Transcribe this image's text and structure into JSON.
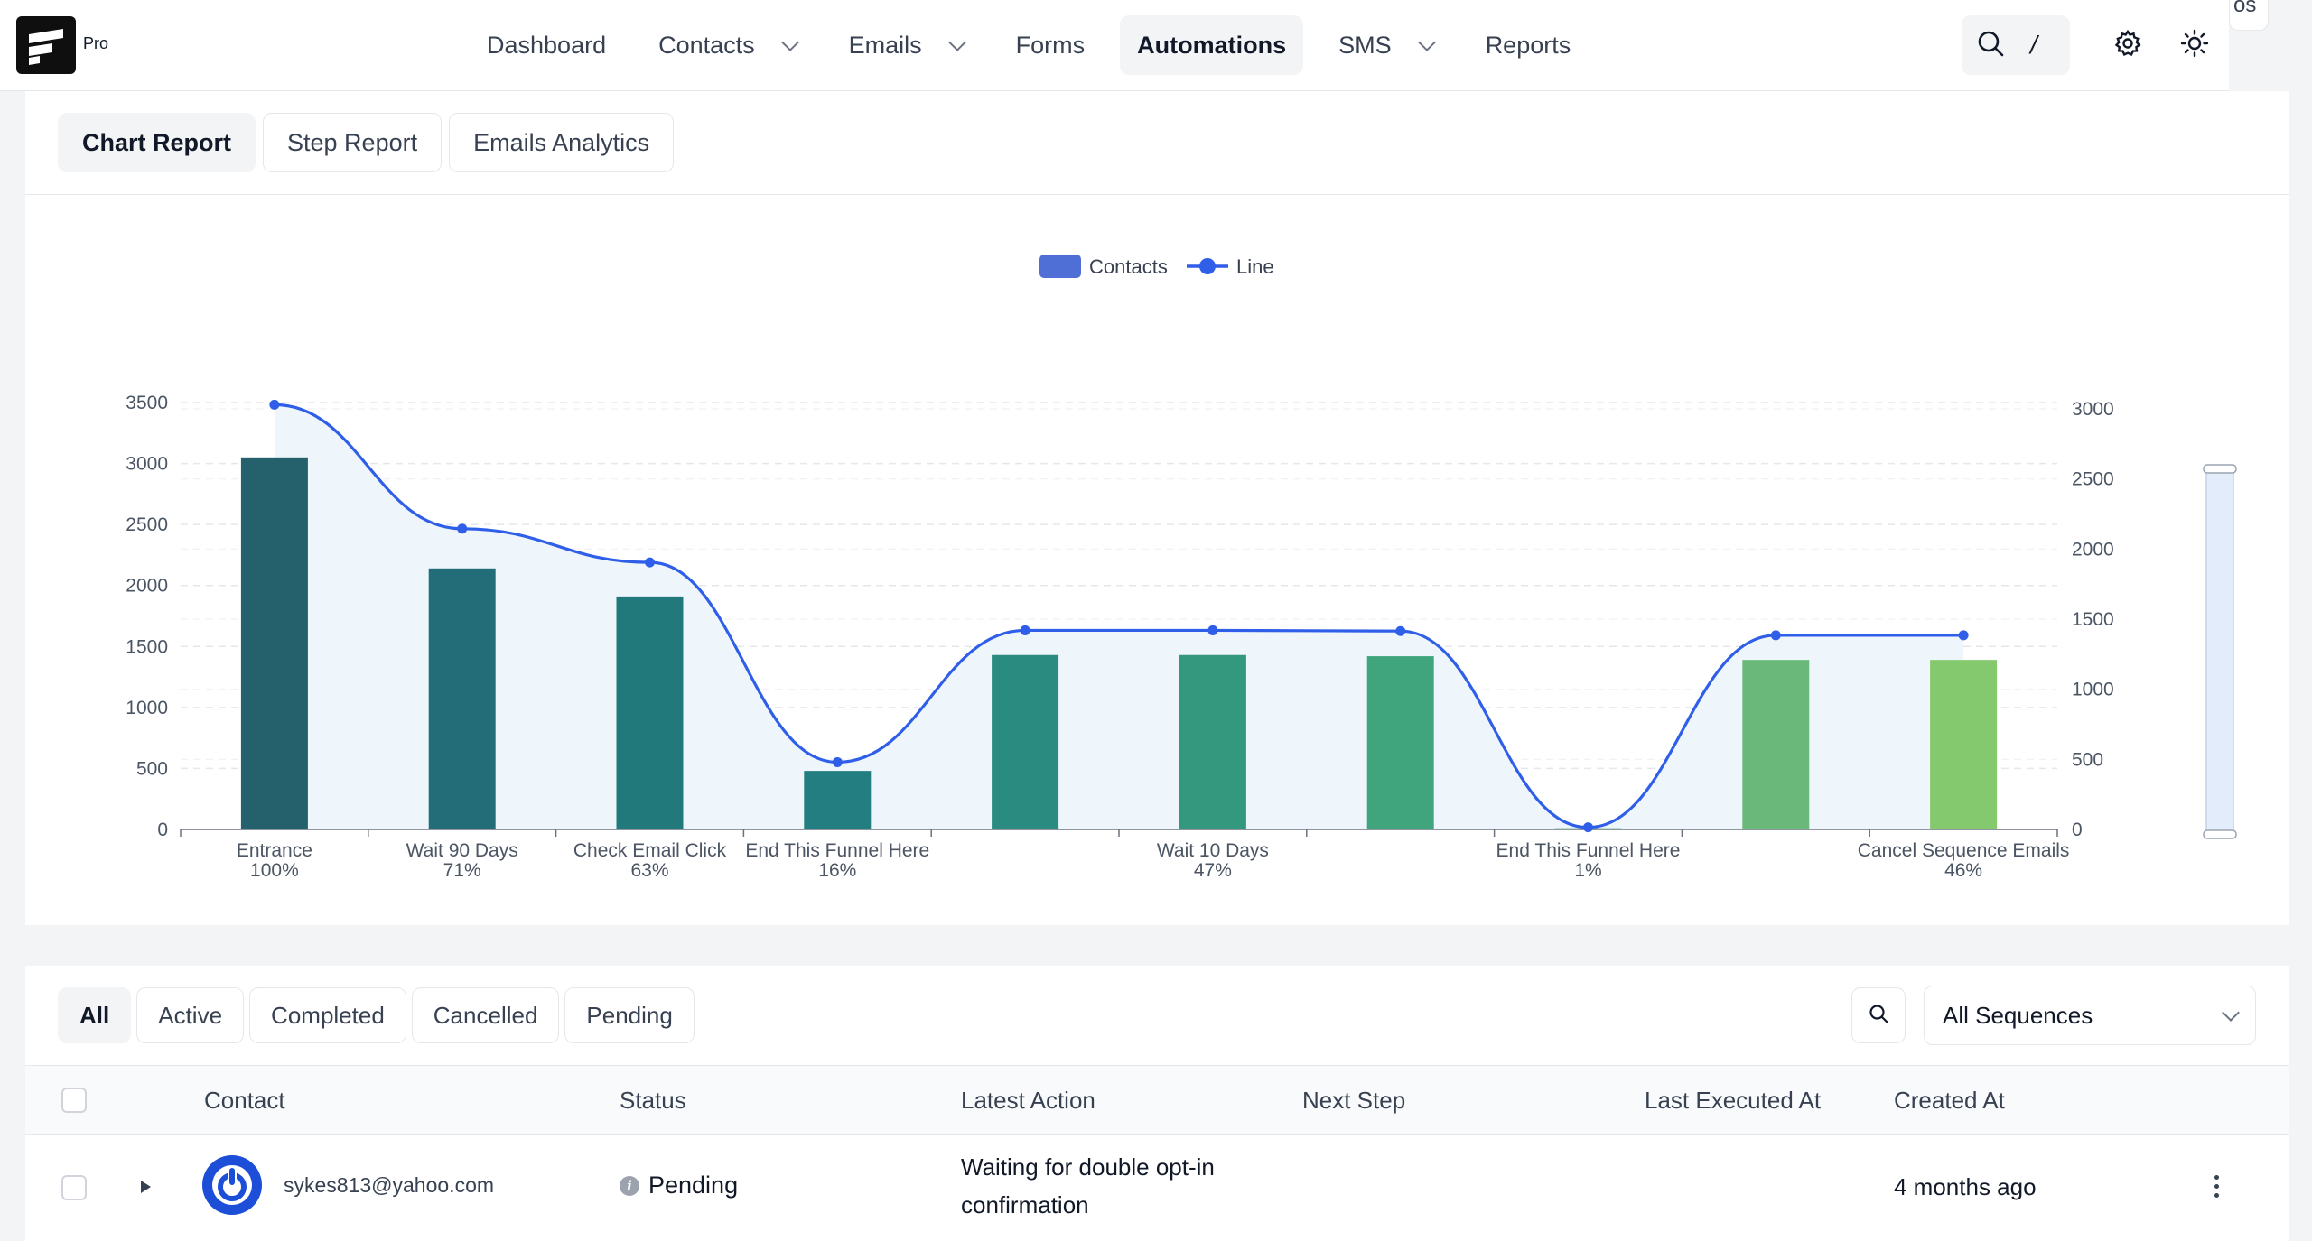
{
  "app": {
    "badge": "Pro",
    "peek_text": "os"
  },
  "nav": {
    "items": [
      {
        "label": "Dashboard",
        "dropdown": false,
        "active": false
      },
      {
        "label": "Contacts",
        "dropdown": true,
        "active": false
      },
      {
        "label": "Emails",
        "dropdown": true,
        "active": false
      },
      {
        "label": "Forms",
        "dropdown": false,
        "active": false
      },
      {
        "label": "Automations",
        "dropdown": false,
        "active": true
      },
      {
        "label": "SMS",
        "dropdown": true,
        "active": false
      },
      {
        "label": "Reports",
        "dropdown": false,
        "active": false
      }
    ],
    "search_shortcut": "/",
    "icons": [
      "search-icon",
      "gear-icon",
      "sun-icon"
    ]
  },
  "report_tabs": [
    {
      "label": "Chart Report",
      "active": true
    },
    {
      "label": "Step Report",
      "active": false
    },
    {
      "label": "Emails Analytics",
      "active": false
    }
  ],
  "chart_data": {
    "type": "bar",
    "legend": [
      {
        "name": "Contacts",
        "kind": "bar"
      },
      {
        "name": "Line",
        "kind": "line"
      }
    ],
    "legend_position": "top-center",
    "categories": [
      [
        "Entrance",
        "100%"
      ],
      [
        "Wait 90 Days",
        "71%"
      ],
      [
        "Check Email Click",
        "63%"
      ],
      [
        "End This Funnel Here",
        "16%"
      ],
      [
        "",
        ""
      ],
      [
        "Wait 10 Days",
        "47%"
      ],
      [
        "",
        ""
      ],
      [
        "End This Funnel Here",
        "1%"
      ],
      [
        "",
        ""
      ],
      [
        "Cancel Sequence Emails",
        "46%"
      ]
    ],
    "series": [
      {
        "name": "Contacts",
        "type": "bar",
        "axis": "left",
        "values": [
          3050,
          2140,
          1910,
          480,
          1430,
          1430,
          1420,
          10,
          1390,
          1390
        ]
      },
      {
        "name": "Line",
        "type": "line",
        "axis": "right",
        "smooth": true,
        "area": true,
        "values": [
          3030,
          2145,
          1905,
          480,
          1420,
          1420,
          1415,
          15,
          1385,
          1385
        ]
      }
    ],
    "y_left": {
      "min": 0,
      "max": 3500,
      "ticks": [
        "0",
        "500",
        "1000",
        "1500",
        "2000",
        "2500",
        "3000",
        "3500"
      ]
    },
    "y_right": {
      "min": 0,
      "max": 3000,
      "ticks": [
        "0",
        "500",
        "1000",
        "1500",
        "2000",
        "2500",
        "3000"
      ]
    },
    "grid": true,
    "bar_colors": [
      "#25616c",
      "#236d78",
      "#22797c",
      "#227e80",
      "#2a8c80",
      "#34987f",
      "#40a47c",
      "#4fae7b",
      "#6bb97a",
      "#84c96e"
    ],
    "line_color": "#2f5ee8",
    "area_color": "#eef6fb",
    "legend_bar_color": "#4f6fd6"
  },
  "table": {
    "filters": [
      {
        "label": "All",
        "active": true
      },
      {
        "label": "Active",
        "active": false
      },
      {
        "label": "Completed",
        "active": false
      },
      {
        "label": "Cancelled",
        "active": false
      },
      {
        "label": "Pending",
        "active": false
      }
    ],
    "sequence_select": "All Sequences",
    "columns": {
      "contact": "Contact",
      "status": "Status",
      "latest_action": "Latest Action",
      "next_step": "Next Step",
      "last_executed_at": "Last Executed At",
      "created_at": "Created At"
    },
    "rows": [
      {
        "email": "sykes813@yahoo.com",
        "status": "Pending",
        "status_icon": "i",
        "latest_action_line1": "Waiting for double opt-in",
        "latest_action_line2": "confirmation",
        "next_step": "",
        "last_executed_at": "",
        "created_at": "4 months ago"
      }
    ]
  }
}
